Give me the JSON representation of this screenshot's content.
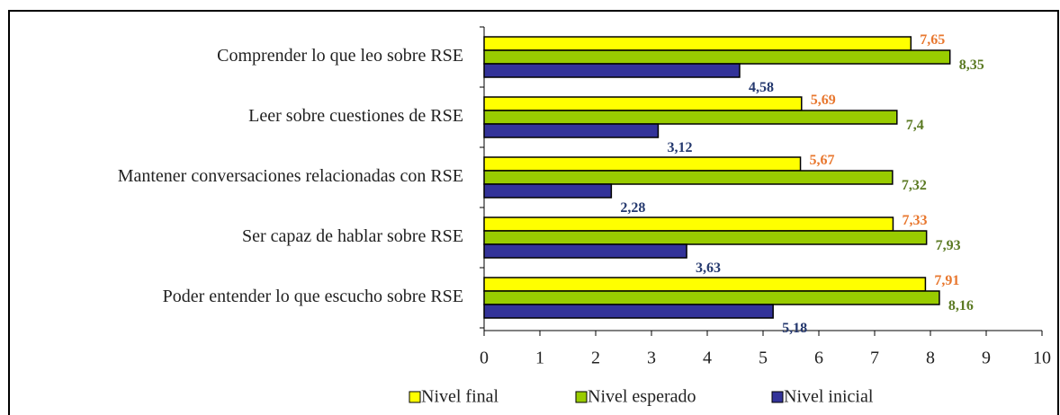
{
  "chart_data": {
    "type": "bar",
    "orientation": "horizontal",
    "categories": [
      "Comprender lo que leo sobre RSE",
      "Leer sobre cuestiones de RSE",
      "Mantener conversaciones relacionadas con RSE",
      "Ser capaz de hablar sobre RSE",
      "Poder entender lo que escucho sobre RSE"
    ],
    "series": [
      {
        "name": "Nivel final",
        "color": "#ffff00",
        "label_color": "#e8772e",
        "values": [
          7.65,
          5.69,
          5.67,
          7.33,
          7.91
        ],
        "value_labels": [
          "7,65",
          "5,69",
          "5,67",
          "7,33",
          "7,91"
        ]
      },
      {
        "name": "Nivel esperado",
        "color": "#99cc00",
        "label_color": "#5b7a23",
        "values": [
          8.35,
          7.4,
          7.32,
          7.93,
          8.16
        ],
        "value_labels": [
          "8,35",
          "7,4",
          "7,32",
          "7,93",
          "8,16"
        ]
      },
      {
        "name": "Nivel inicial",
        "color": "#333399",
        "label_color": "#24386e",
        "values": [
          4.58,
          3.12,
          2.28,
          3.63,
          5.18
        ],
        "value_labels": [
          "4,58",
          "3,12",
          "2,28",
          "3,63",
          "5,18"
        ]
      }
    ],
    "xlim": [
      0,
      10
    ],
    "xticks": [
      0,
      1,
      2,
      3,
      4,
      5,
      6,
      7,
      8,
      9,
      10
    ],
    "legend": "bottom"
  }
}
